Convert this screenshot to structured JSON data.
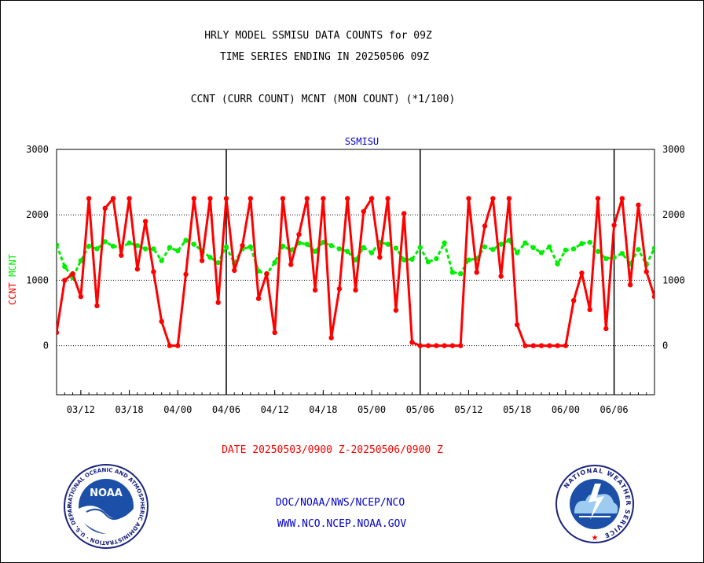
{
  "header": {
    "title_line1": "HRLY MODEL SSMISU DATA COUNTS for 09Z",
    "title_line2": "TIME SERIES ENDING IN 20250506 09Z",
    "subtitle": "CCNT (CURR COUNT) MCNT (MON COUNT) (*1/100)"
  },
  "chart_data": {
    "type": "line",
    "title": "SSMISU",
    "ylabel_left_ccnt": "CCNT",
    "ylabel_left_mcnt": "MCNT",
    "xlabel": "DATE 20250503/0900 Z-20250506/0900 Z",
    "ylim": [
      -750,
      3000
    ],
    "y_ticks": [
      0,
      1000,
      2000,
      3000
    ],
    "y_tick_labels": [
      "0",
      "1000",
      "2000",
      "3000"
    ],
    "x_tick_labels": [
      "03/12",
      "03/18",
      "04/00",
      "04/06",
      "04/12",
      "04/18",
      "05/00",
      "05/06",
      "05/12",
      "05/18",
      "06/00",
      "06/06"
    ],
    "grid": "horizontal dotted at 0, 1000, 2000",
    "day_boundaries": [
      "04/06",
      "05/06",
      "06/06"
    ],
    "colors": {
      "ccnt": "#ff0000",
      "mcnt": "#00ee00",
      "title": "#0000cc",
      "axis": "#000000"
    },
    "series": [
      {
        "name": "CCNT",
        "values": [
          200,
          1000,
          1100,
          750,
          2250,
          610,
          2100,
          2250,
          1380,
          2250,
          1170,
          1900,
          1130,
          370,
          0,
          0,
          1090,
          2250,
          1300,
          2250,
          660,
          2250,
          1150,
          1530,
          2250,
          720,
          1100,
          200,
          2250,
          1240,
          1700,
          2250,
          850,
          2250,
          120,
          870,
          2250,
          850,
          2050,
          2250,
          1350,
          2250,
          540,
          2020,
          50,
          0,
          0,
          0,
          0,
          0,
          0,
          2250,
          1120,
          1830,
          2250,
          1060,
          2250,
          320,
          0,
          0,
          0,
          0,
          0,
          0,
          690,
          1110,
          550,
          2250,
          260,
          1840,
          2250,
          930,
          2150,
          1130,
          750
        ]
      },
      {
        "name": "MCNT",
        "values": [
          1540,
          1210,
          1040,
          1300,
          1520,
          1480,
          1590,
          1520,
          1500,
          1570,
          1530,
          1480,
          1480,
          1300,
          1500,
          1450,
          1610,
          1550,
          1450,
          1350,
          1270,
          1510,
          1260,
          1480,
          1510,
          1140,
          1090,
          1270,
          1520,
          1460,
          1570,
          1550,
          1440,
          1580,
          1530,
          1480,
          1440,
          1310,
          1500,
          1420,
          1580,
          1550,
          1490,
          1310,
          1320,
          1500,
          1280,
          1330,
          1570,
          1120,
          1100,
          1310,
          1330,
          1510,
          1470,
          1550,
          1610,
          1420,
          1570,
          1500,
          1420,
          1510,
          1250,
          1460,
          1480,
          1560,
          1580,
          1440,
          1330,
          1350,
          1410,
          1250,
          1470,
          1240,
          1490
        ]
      }
    ]
  },
  "footer": {
    "line1": "DOC/NOAA/NWS/NCEP/NCO",
    "line2": "WWW.NCO.NCEP.NOAA.GOV",
    "noaa_logo_text": "NOAA",
    "noaa_ring_text": "NATIONAL OCEANIC AND ATMOSPHERIC ADMINISTRATION · U.S. DEPARTMENT OF COMMERCE ·",
    "nws_ring_text": "NATIONAL WEATHER SERVICE"
  }
}
